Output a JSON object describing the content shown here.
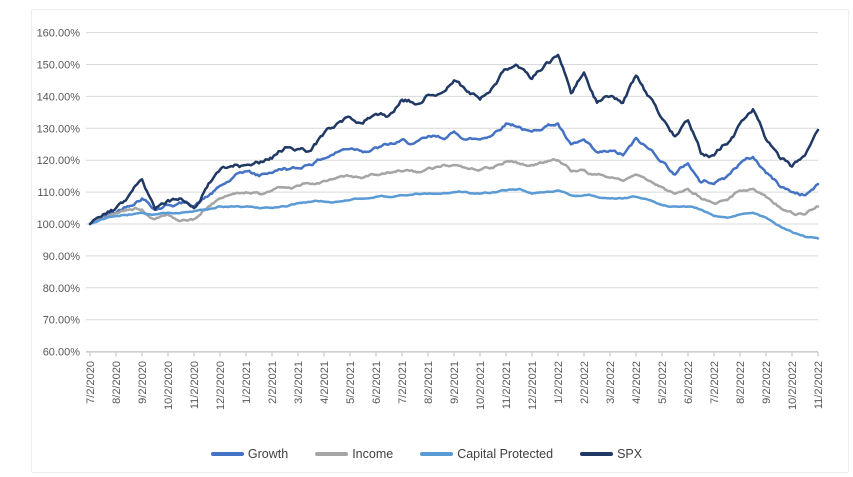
{
  "chart_data": {
    "type": "line",
    "title": "",
    "xlabel": "",
    "ylabel": "",
    "x_tick_labels": [
      "7/2/2020",
      "8/2/2020",
      "9/2/2020",
      "10/2/2020",
      "11/2/2020",
      "12/2/2020",
      "1/2/2021",
      "2/2/2021",
      "3/2/2021",
      "4/2/2021",
      "5/2/2021",
      "6/2/2021",
      "7/2/2021",
      "8/2/2021",
      "9/2/2021",
      "10/2/2021",
      "11/2/2021",
      "12/2/2021",
      "1/2/2022",
      "2/2/2022",
      "3/2/2022",
      "4/2/2022",
      "5/2/2022",
      "6/2/2022",
      "7/2/2022",
      "8/2/2022",
      "9/2/2022",
      "10/2/2022",
      "11/2/2022"
    ],
    "y_axis": {
      "min": 60,
      "max": 160,
      "step": 10,
      "format": "0.00%",
      "tick_labels": [
        "160.00%",
        "150.00%",
        "140.00%",
        "130.00%",
        "120.00%",
        "110.00%",
        "100.00%",
        "90.00%",
        "80.00%",
        "70.00%",
        "60.00%"
      ]
    },
    "grid": true,
    "legend_position": "bottom",
    "note": "values are monthly readings in percent of 7/2/2020 value; mid_values are estimated mid-month readings between ticks",
    "series": [
      {
        "name": "Growth",
        "color": "#4472C4",
        "values": [
          100,
          103.5,
          108,
          106,
          105.5,
          112,
          116.5,
          116,
          117.5,
          120.5,
          123.5,
          124,
          126.5,
          127.5,
          129,
          126.5,
          131.5,
          129,
          131.5,
          126.5,
          123,
          127,
          119.5,
          119,
          112.5,
          119,
          116,
          110,
          112.5
        ],
        "mid_values": [
          102,
          105.5,
          104.5,
          106.5,
          108.5,
          114.5,
          115,
          117.5,
          118.5,
          122.5,
          122.5,
          125,
          125.5,
          127,
          126.5,
          128,
          130.5,
          130.5,
          125,
          122.5,
          121.5,
          123.5,
          115.5,
          113,
          115,
          121,
          112,
          109
        ]
      },
      {
        "name": "Income",
        "color": "#A5A5A5",
        "values": [
          100,
          103.5,
          104.5,
          103,
          101.5,
          108,
          110,
          110.5,
          112,
          113.5,
          115,
          115.5,
          116.5,
          117.5,
          118.5,
          117,
          119.5,
          118.5,
          120,
          117,
          114.5,
          115.5,
          111.5,
          111,
          106.5,
          110.5,
          108.5,
          103.5,
          105.5
        ],
        "mid_values": [
          102,
          104.5,
          101.5,
          101,
          105,
          109.5,
          109.5,
          111.5,
          112.5,
          114.5,
          114.5,
          116,
          116.5,
          118,
          117.5,
          117.5,
          119,
          119.5,
          116.5,
          115.5,
          113.5,
          113.5,
          109.5,
          108,
          107.5,
          111,
          105.5,
          103
        ]
      },
      {
        "name": "Capital Protected",
        "color": "#5B9BD5",
        "values": [
          100,
          102.5,
          103.5,
          103.5,
          104,
          105.5,
          105.5,
          105,
          106.5,
          107,
          107.5,
          108.5,
          109,
          109.5,
          110,
          109.5,
          110.5,
          109.5,
          110.5,
          109,
          108,
          108.5,
          106,
          105.5,
          102.5,
          103,
          102,
          97.5,
          95.5
        ],
        "mid_values": [
          101.5,
          103,
          103,
          103.5,
          104.5,
          105.5,
          105,
          105.5,
          107,
          107,
          108,
          108.5,
          109.5,
          109.5,
          110,
          110,
          111,
          110,
          109,
          108.5,
          108,
          107.5,
          105.5,
          104.5,
          102,
          103.5,
          99.5,
          96
        ]
      },
      {
        "name": "SPX",
        "color": "#1F3864",
        "values": [
          100,
          105,
          114,
          107.5,
          105,
          117,
          118.5,
          120.5,
          123.5,
          128.5,
          133.5,
          134.5,
          139,
          140.5,
          145,
          139,
          148.5,
          145.5,
          153,
          147.5,
          140,
          146.5,
          133,
          132.5,
          121.5,
          131.5,
          126.5,
          118,
          129.5
        ],
        "mid_values": [
          103,
          109,
          104.5,
          108,
          111.5,
          118,
          119,
          124,
          123,
          131.5,
          131.5,
          134,
          137.5,
          141,
          141.5,
          143,
          149,
          150,
          141,
          138,
          138,
          140,
          127.5,
          122,
          125,
          136,
          121,
          121.5
        ]
      }
    ],
    "style_colors": {
      "gridline": "#D9D9D9",
      "axis_line": "#BFBFBF",
      "tick_label": "#595959",
      "legend_text": "#404040",
      "background": "#FFFFFF"
    }
  }
}
